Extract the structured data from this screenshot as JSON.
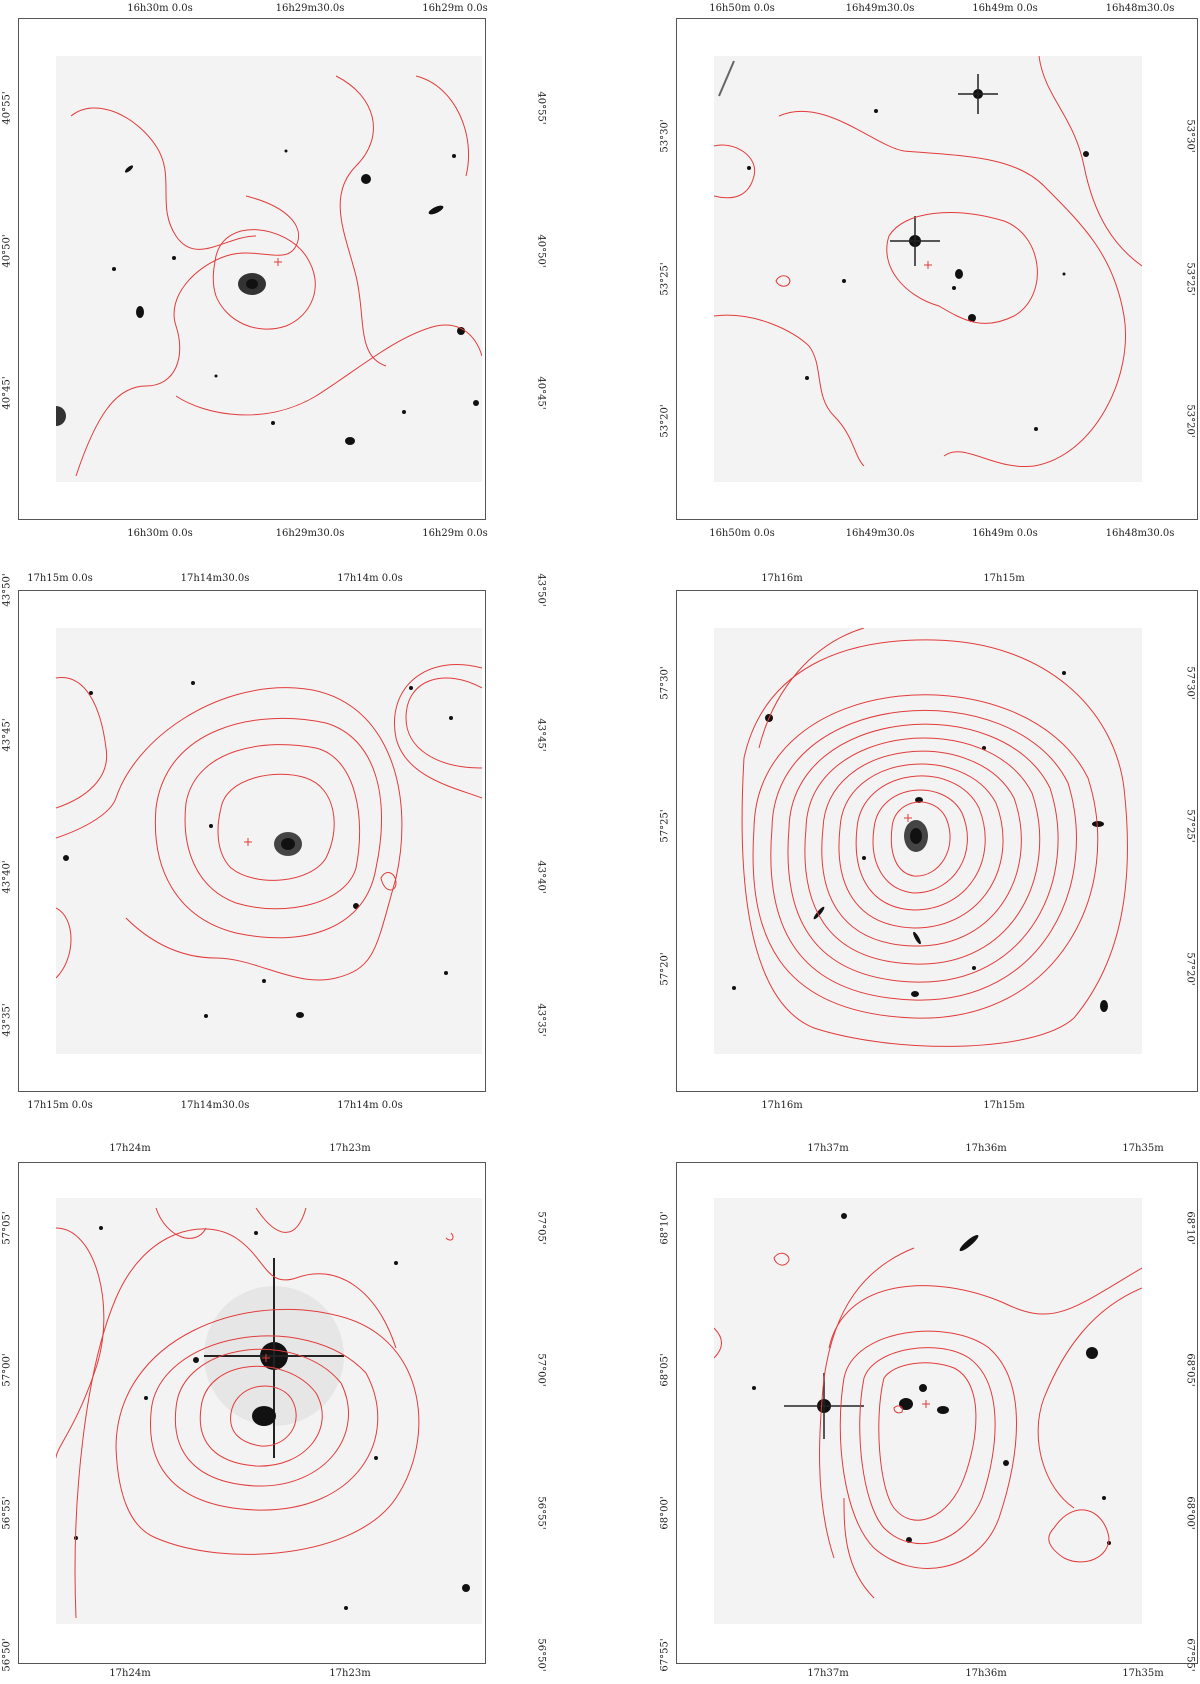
{
  "contour_color": "#e23b3b",
  "panels": [
    {
      "id": "p1",
      "ra_labels": [
        "16h30m 0.0s",
        "16h29m30.0s",
        "16h29m 0.0s"
      ],
      "dec_labels": [
        "40°55'",
        "40°50'",
        "40°45'"
      ]
    },
    {
      "id": "p2",
      "ra_labels": [
        "16h50m 0.0s",
        "16h49m30.0s",
        "16h49m 0.0s",
        "16h48m30.0s"
      ],
      "dec_labels": [
        "53°30'",
        "53°25'",
        "53°20'"
      ]
    },
    {
      "id": "p3",
      "ra_labels": [
        "17h15m 0.0s",
        "17h14m30.0s",
        "17h14m 0.0s"
      ],
      "dec_labels": [
        "43°50'",
        "43°45'",
        "43°40'",
        "43°35'"
      ]
    },
    {
      "id": "p4",
      "ra_labels": [
        "17h16m",
        "17h15m"
      ],
      "dec_labels": [
        "57°30'",
        "57°25'",
        "57°20'"
      ]
    },
    {
      "id": "p5",
      "ra_labels": [
        "17h24m",
        "17h23m"
      ],
      "dec_labels": [
        "57°05'",
        "57°00'",
        "56°55'",
        "56°50'"
      ]
    },
    {
      "id": "p6",
      "ra_labels": [
        "17h37m",
        "17h36m",
        "17h35m"
      ],
      "dec_labels": [
        "68°10'",
        "68°05'",
        "68°00'",
        "67°55'"
      ]
    }
  ]
}
